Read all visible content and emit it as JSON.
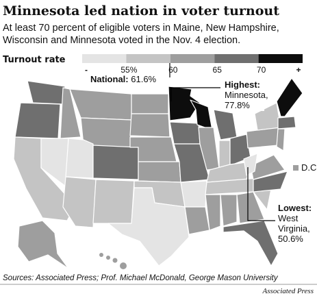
{
  "title": "Minnesota led nation in voter turnout",
  "subtitle": [
    "At least 70 percent of eligible voters in Maine, New Hampshire,",
    "Wisconsin and Minnesota voted in the Nov. 4 election."
  ],
  "legend": {
    "title": "Turnout rate",
    "labels": [
      "-",
      "55%",
      "60",
      "65",
      "70",
      "+"
    ],
    "colors": [
      "#e4e4e4",
      "#c4c4c4",
      "#9e9e9e",
      "#6f6f6f",
      "#0d0d0d"
    ]
  },
  "national": {
    "label": "National:",
    "value": "61.6%"
  },
  "highest": {
    "label": "Highest:",
    "lines": [
      "Minnesota,",
      "77.8%"
    ]
  },
  "lowest": {
    "label": "Lowest:",
    "lines": [
      "West",
      "Virginia,",
      "50.6%"
    ]
  },
  "dc": "D.C.",
  "sources": "Sources: Associated Press; Prof. Michael McDonald, George Mason University",
  "credit": "Associated Press"
}
